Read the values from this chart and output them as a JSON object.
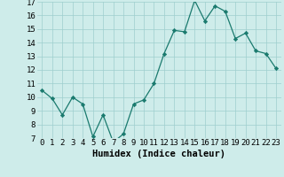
{
  "x": [
    0,
    1,
    2,
    3,
    4,
    5,
    6,
    7,
    8,
    9,
    10,
    11,
    12,
    13,
    14,
    15,
    16,
    17,
    18,
    19,
    20,
    21,
    22,
    23
  ],
  "y": [
    10.5,
    9.9,
    8.7,
    10.0,
    9.5,
    7.1,
    8.7,
    6.7,
    7.3,
    9.5,
    9.8,
    11.0,
    13.2,
    14.9,
    14.8,
    17.1,
    15.6,
    16.7,
    16.3,
    14.3,
    14.7,
    13.4,
    13.2,
    12.1
  ],
  "line_color": "#1a7a6e",
  "marker": "D",
  "marker_size": 2.2,
  "bg_color": "#ceecea",
  "grid_color": "#9ecece",
  "xlabel": "Humidex (Indice chaleur)",
  "xlim": [
    -0.5,
    23.5
  ],
  "ylim": [
    7,
    17
  ],
  "yticks": [
    7,
    8,
    9,
    10,
    11,
    12,
    13,
    14,
    15,
    16,
    17
  ],
  "xticks": [
    0,
    1,
    2,
    3,
    4,
    5,
    6,
    7,
    8,
    9,
    10,
    11,
    12,
    13,
    14,
    15,
    16,
    17,
    18,
    19,
    20,
    21,
    22,
    23
  ],
  "xlabel_fontsize": 7.5,
  "tick_fontsize": 6.5
}
